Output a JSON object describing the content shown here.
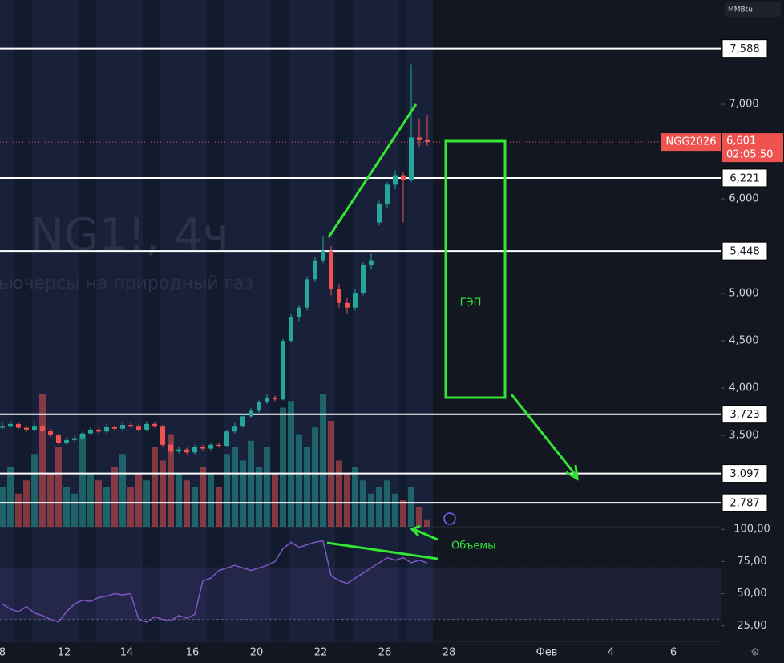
{
  "chart_data": {
    "type": "candlestick",
    "watermark_symbol": "NG1!, 4ч",
    "watermark_desc": "ьючерсы на природный газ",
    "unit": "MMBtu",
    "symbol": "NGG2026",
    "countdown": "02:05:50",
    "last_price": {
      "value": 6601,
      "label": "6,601"
    },
    "ylim": [
      2534,
      8102
    ],
    "yticks": [
      {
        "value": 7000,
        "label": "7,000"
      },
      {
        "value": 6000,
        "label": "6,000"
      },
      {
        "value": 5000,
        "label": "5,000"
      },
      {
        "value": 4500,
        "label": "4,500"
      },
      {
        "value": 4000,
        "label": "4,000"
      },
      {
        "value": 3500,
        "label": "3,500"
      }
    ],
    "levels": [
      {
        "value": 7588,
        "label": "7,588"
      },
      {
        "value": 6221,
        "label": "6,221"
      },
      {
        "value": 5448,
        "label": "5,448"
      },
      {
        "value": 3723,
        "label": "3,723"
      },
      {
        "value": 3097,
        "label": "3,097"
      },
      {
        "value": 2787,
        "label": "2,787"
      }
    ],
    "x_labels": [
      "8",
      "12",
      "14",
      "16",
      "20",
      "22",
      "26",
      "28",
      "Фев",
      "4",
      "6"
    ],
    "ohlc": [
      [
        3580,
        3640,
        3560,
        3600
      ],
      [
        3600,
        3650,
        3580,
        3620
      ],
      [
        3620,
        3640,
        3560,
        3580
      ],
      [
        3580,
        3600,
        3530,
        3560
      ],
      [
        3560,
        3630,
        3540,
        3600
      ],
      [
        3600,
        3620,
        3530,
        3550
      ],
      [
        3550,
        3570,
        3480,
        3500
      ],
      [
        3500,
        3520,
        3400,
        3420
      ],
      [
        3420,
        3480,
        3400,
        3450
      ],
      [
        3450,
        3500,
        3430,
        3470
      ],
      [
        3470,
        3550,
        3450,
        3520
      ],
      [
        3520,
        3590,
        3500,
        3560
      ],
      [
        3560,
        3580,
        3520,
        3540
      ],
      [
        3540,
        3620,
        3520,
        3590
      ],
      [
        3590,
        3610,
        3550,
        3570
      ],
      [
        3570,
        3640,
        3550,
        3610
      ],
      [
        3610,
        3630,
        3580,
        3600
      ],
      [
        3600,
        3620,
        3540,
        3560
      ],
      [
        3560,
        3650,
        3540,
        3620
      ],
      [
        3620,
        3640,
        3580,
        3600
      ],
      [
        3600,
        3610,
        3380,
        3400
      ],
      [
        3400,
        3420,
        3310,
        3330
      ],
      [
        3330,
        3380,
        3310,
        3350
      ],
      [
        3350,
        3370,
        3300,
        3320
      ],
      [
        3320,
        3400,
        3300,
        3380
      ],
      [
        3380,
        3400,
        3340,
        3360
      ],
      [
        3360,
        3420,
        3340,
        3400
      ],
      [
        3400,
        3420,
        3370,
        3390
      ],
      [
        3390,
        3560,
        3380,
        3540
      ],
      [
        3540,
        3630,
        3520,
        3600
      ],
      [
        3600,
        3720,
        3580,
        3700
      ],
      [
        3700,
        3790,
        3680,
        3760
      ],
      [
        3760,
        3870,
        3740,
        3850
      ],
      [
        3850,
        3930,
        3830,
        3900
      ],
      [
        3900,
        3920,
        3860,
        3880
      ],
      [
        3880,
        4520,
        3870,
        4500
      ],
      [
        4500,
        4780,
        4480,
        4750
      ],
      [
        4750,
        4880,
        4700,
        4850
      ],
      [
        4850,
        5180,
        4820,
        5150
      ],
      [
        5150,
        5380,
        5120,
        5350
      ],
      [
        5350,
        5600,
        5320,
        5450
      ],
      [
        5450,
        5500,
        4980,
        5050
      ],
      [
        5050,
        5100,
        4850,
        4900
      ],
      [
        4900,
        4950,
        4780,
        4850
      ],
      [
        4850,
        5050,
        4820,
        5000
      ],
      [
        5000,
        5330,
        4980,
        5300
      ],
      [
        5300,
        5420,
        5250,
        5350
      ],
      [
        5750,
        5980,
        5720,
        5950
      ],
      [
        5950,
        6180,
        5900,
        6150
      ],
      [
        6150,
        6300,
        6100,
        6250
      ],
      [
        6250,
        6290,
        5750,
        6200
      ],
      [
        6200,
        7420,
        6180,
        6650
      ],
      [
        6650,
        6850,
        6550,
        6620
      ],
      [
        6620,
        6880,
        6560,
        6601
      ]
    ],
    "volume": [
      30,
      45,
      25,
      35,
      55,
      100,
      40,
      60,
      30,
      25,
      70,
      40,
      35,
      30,
      45,
      55,
      30,
      40,
      35,
      60,
      50,
      70,
      40,
      35,
      30,
      45,
      40,
      30,
      55,
      60,
      50,
      65,
      45,
      60,
      40,
      90,
      95,
      70,
      60,
      75,
      100,
      80,
      50,
      40,
      45,
      35,
      25,
      30,
      35,
      25,
      20,
      30,
      15,
      5
    ],
    "rsi": [
      42,
      38,
      36,
      40,
      35,
      33,
      30,
      28,
      36,
      42,
      45,
      44,
      47,
      48,
      50,
      49,
      50,
      30,
      28,
      32,
      30,
      29,
      33,
      31,
      34,
      60,
      62,
      68,
      70,
      72,
      70,
      68,
      70,
      72,
      75,
      85,
      90,
      86,
      88,
      90,
      91,
      64,
      60,
      58,
      62,
      66,
      70,
      74,
      78,
      76,
      78,
      74,
      76,
      74
    ],
    "rsi_ylim": [
      13,
      102
    ],
    "rsi_yticks": [
      {
        "value": 100,
        "label": "100,00"
      },
      {
        "value": 75,
        "label": "75,00"
      },
      {
        "value": 50,
        "label": "50,00"
      },
      {
        "value": 25,
        "label": "25,00"
      }
    ],
    "rsi_band": [
      30,
      70
    ],
    "annotations": [
      "ГЭП",
      "Объемы"
    ]
  }
}
